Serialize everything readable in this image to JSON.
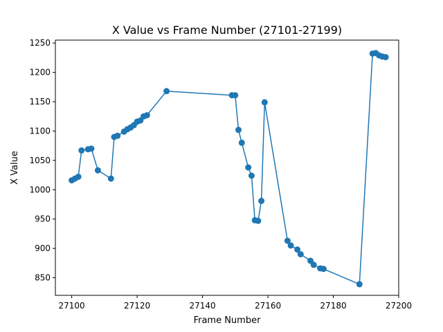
{
  "chart_data": {
    "type": "line",
    "title": "X Value vs Frame Number (27101-27199)",
    "xlabel": "Frame Number",
    "ylabel": "X Value",
    "xlim": [
      27095,
      27200
    ],
    "ylim": [
      820,
      1255
    ],
    "xticks": [
      27100,
      27120,
      27140,
      27160,
      27180,
      27200
    ],
    "yticks": [
      850,
      900,
      950,
      1000,
      1050,
      1100,
      1150,
      1200,
      1250
    ],
    "grid": false,
    "legend": "none",
    "marker": "circle",
    "color": "#1f77b4",
    "series": [
      {
        "x": [
          27100,
          27101,
          27102,
          27103,
          27105,
          27106,
          27108,
          27112,
          27113,
          27114,
          27116,
          27117,
          27118,
          27119,
          27120,
          27121,
          27122,
          27123,
          27129,
          27149,
          27150,
          27151,
          27152,
          27154,
          27155,
          27156,
          27157,
          27158,
          27159,
          27166,
          27167,
          27169,
          27170,
          27173,
          27174,
          27176,
          27177,
          27188,
          27192,
          27193,
          27194,
          27195,
          27196
        ],
        "values": [
          1016,
          1019,
          1022,
          1067,
          1069,
          1070,
          1033,
          1019,
          1090,
          1092,
          1099,
          1103,
          1106,
          1110,
          1116,
          1118,
          1125,
          1127,
          1168,
          1161,
          1161,
          1102,
          1080,
          1038,
          1024,
          948,
          947,
          981,
          1149,
          913,
          905,
          898,
          890,
          879,
          872,
          866,
          865,
          839,
          1232,
          1233,
          1229,
          1227,
          1226
        ]
      }
    ]
  }
}
